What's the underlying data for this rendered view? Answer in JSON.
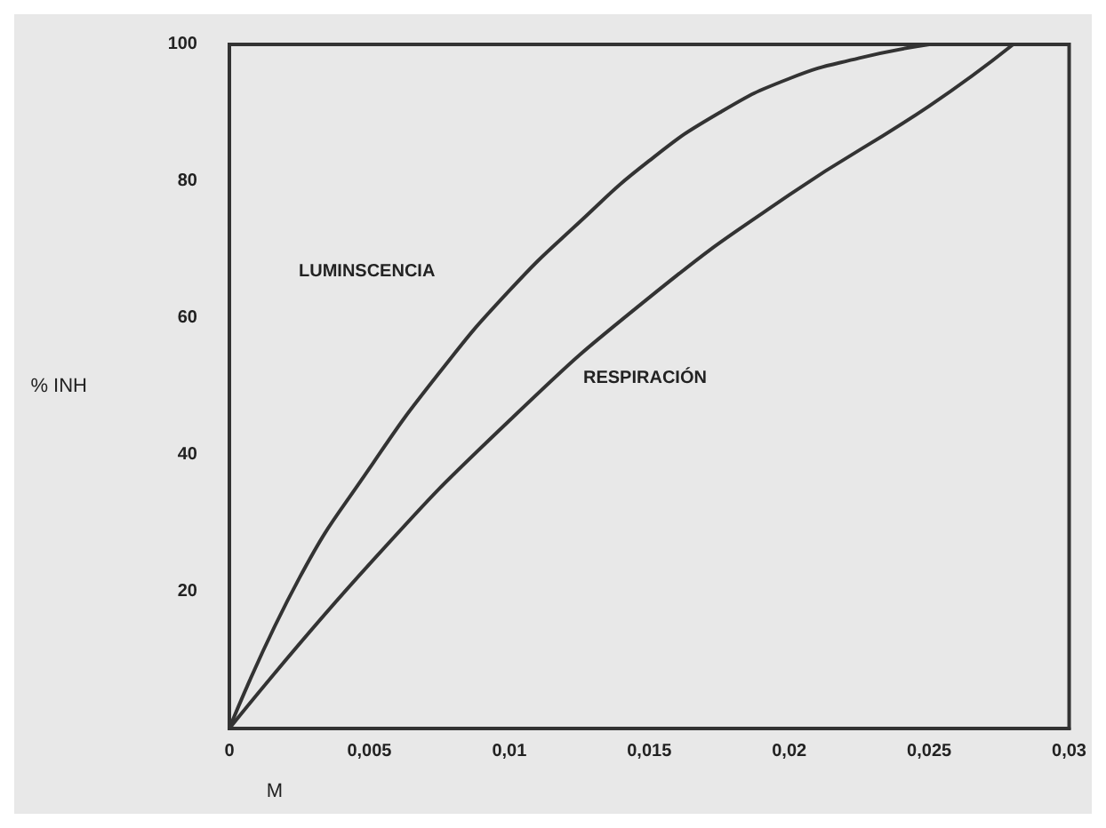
{
  "chart_data": {
    "type": "line",
    "xlabel": "M",
    "ylabel": "% INH",
    "series": [
      {
        "color": "#333333",
        "x": [
          0,
          0.0025,
          0.005,
          0.0075,
          0.01,
          0.0125,
          0.015,
          0.0175,
          0.02,
          0.0225,
          0.025
        ],
        "values": [
          0,
          22,
          38,
          52,
          64,
          74,
          83,
          90,
          95,
          98,
          100
        ]
      },
      {
        "color": "#333333",
        "x": [
          0,
          0.005,
          0.01,
          0.015,
          0.02,
          0.025,
          0.028
        ],
        "values": [
          0,
          24,
          45,
          63,
          78,
          91,
          100
        ]
      }
    ],
    "annotations": [
      "LUMINSCENCIA",
      "RESPIRACIÓN"
    ],
    "xlim": [
      0,
      0.03
    ],
    "ylim": [
      0,
      100
    ],
    "xticks": [
      0,
      {
        "value": 0.005,
        "label": "0,005"
      },
      {
        "value": 0.01,
        "label": "0,01"
      },
      {
        "value": 0.015,
        "label": "0,015"
      },
      {
        "value": 0.02,
        "label": "0,02"
      },
      {
        "value": 0.025,
        "label": "0,025"
      },
      {
        "value": 0.03,
        "label": "0,03"
      }
    ],
    "yticks": [
      20,
      40,
      60,
      80,
      100
    ],
    "grid": false,
    "marker": "none",
    "line_style": "solid"
  }
}
